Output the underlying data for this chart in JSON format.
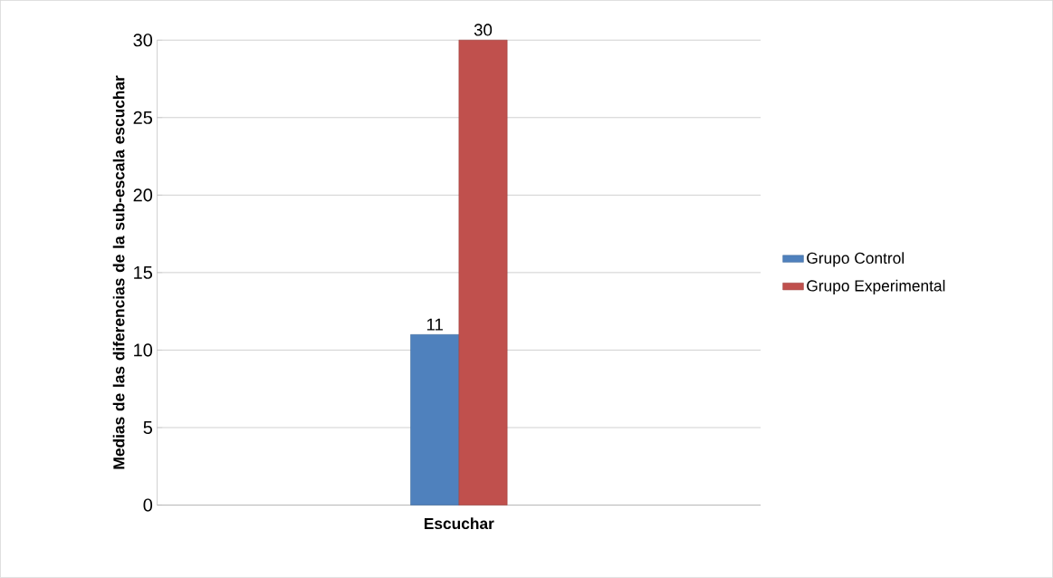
{
  "chart_data": {
    "type": "bar",
    "xlabel": "Escuchar",
    "ylabel": "Medias de las diferencias de la sub-escala escuchar",
    "categories": [
      null
    ],
    "series": [
      {
        "name": "Grupo Control",
        "color": "#4f81bd",
        "values": [
          11
        ]
      },
      {
        "name": "Grupo Experimental",
        "color": "#c0504d",
        "values": [
          30
        ]
      }
    ],
    "ylim": [
      0,
      30
    ],
    "yticks": [
      0,
      5,
      10,
      15,
      20,
      25,
      30
    ],
    "grid": "y",
    "legend": "right",
    "data_labels": true
  }
}
